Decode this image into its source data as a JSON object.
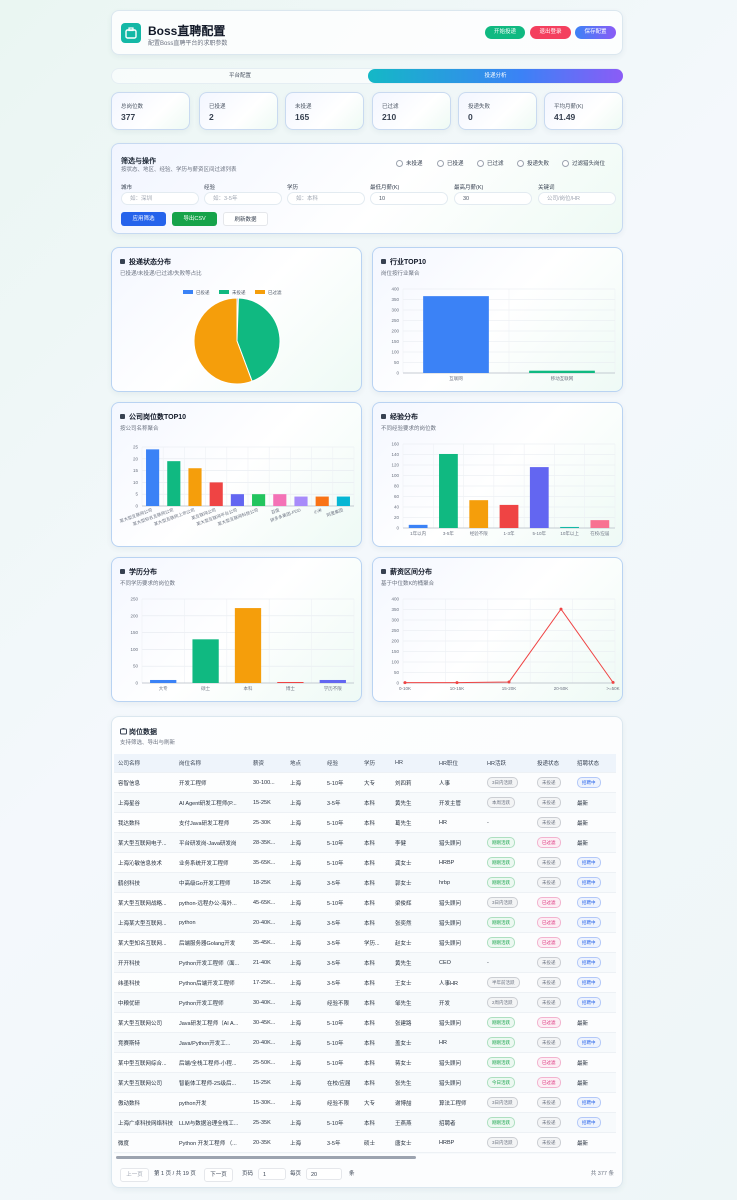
{
  "header": {
    "title": "Boss直聘配置",
    "subtitle": "配置Boss直聘平台的求职参数",
    "buttons": [
      "开始投递",
      "退出登录",
      "保存配置"
    ]
  },
  "tabs": [
    "平台配置",
    "投递分析"
  ],
  "stats": [
    {
      "label": "总岗位数",
      "value": 377
    },
    {
      "label": "已投递",
      "value": 2
    },
    {
      "label": "未投递",
      "value": 165
    },
    {
      "label": "已过滤",
      "value": 210
    },
    {
      "label": "投递失败",
      "value": 0
    },
    {
      "label": "平均月薪(K)",
      "value": 41.49
    }
  ],
  "filters": {
    "title": "筛选与操作",
    "subtitle": "按状态、地区、经验、学历与薪资区间过滤列表",
    "statuses": [
      "未投递",
      "已投递",
      "已过滤",
      "投递失败",
      "过滤猎头岗位"
    ],
    "fields": [
      {
        "label": "城市",
        "placeholder": "如：深圳"
      },
      {
        "label": "经验",
        "placeholder": "如：3-5年"
      },
      {
        "label": "学历",
        "placeholder": "如：本科"
      },
      {
        "label": "最低月薪(K)",
        "value": 10
      },
      {
        "label": "最高月薪(K)",
        "value": 30
      },
      {
        "label": "关键词",
        "placeholder": "公司/岗位/HR"
      }
    ],
    "buttons": [
      "应用筛选",
      "导出CSV",
      "刷新数据"
    ]
  },
  "chart_data": [
    {
      "type": "pie",
      "title": "投递状态分布",
      "subtitle": "已投递/未投递/已过滤/失败等占比",
      "categories": [
        "已投递",
        "未投递",
        "已过滤"
      ],
      "values": [
        2,
        165,
        210
      ],
      "colors": [
        "#3b82f6",
        "#10b981",
        "#f59e0b"
      ]
    },
    {
      "type": "bar",
      "title": "行业TOP10",
      "subtitle": "岗位按行业聚合",
      "categories": [
        "互联网",
        "移动互联网"
      ],
      "values": [
        366,
        11
      ],
      "colors": [
        "#3b82f6",
        "#10b981"
      ],
      "ylim": [
        0,
        400
      ],
      "yticks": [
        0,
        50,
        100,
        150,
        200,
        250,
        300,
        350,
        400
      ],
      "grid": true
    },
    {
      "type": "bar",
      "title": "公司岗位数TOP10",
      "subtitle": "按公司名称聚合",
      "categories": [
        "某大型互联网公司",
        "某大型知名互联网公司",
        "某大型互联网上市公司",
        "某互联网公司",
        "某大型互联网平台公司",
        "某大型互联网科技公司",
        "百度",
        "拼多多集团-PDD",
        "小米",
        "阿里集团"
      ],
      "values": [
        24,
        19,
        16,
        10,
        5,
        5,
        5,
        4,
        4,
        4
      ],
      "colors": [
        "#3b82f6",
        "#10b981",
        "#f59e0b",
        "#ef4444",
        "#6366f1",
        "#22c55e",
        "#f472b6",
        "#a78bfa",
        "#f97316",
        "#06b6d4"
      ],
      "ylim": [
        0,
        25
      ],
      "yticks": [
        0,
        5,
        10,
        15,
        20,
        25
      ],
      "grid": true
    },
    {
      "type": "bar",
      "title": "经验分布",
      "subtitle": "不同经验要求的岗位数",
      "categories": [
        "1年以内",
        "3-5年",
        "经验不限",
        "1-3年",
        "5-10年",
        "10年以上",
        "在校/应届"
      ],
      "values": [
        6,
        141,
        53,
        44,
        116,
        2,
        15
      ],
      "colors": [
        "#3b82f6",
        "#10b981",
        "#f59e0b",
        "#ef4444",
        "#6366f1",
        "#14b8a6",
        "#f87191"
      ],
      "ylim": [
        0,
        160
      ],
      "yticks": [
        0,
        20,
        40,
        60,
        80,
        100,
        120,
        140,
        160
      ],
      "grid": true
    },
    {
      "type": "bar",
      "title": "学历分布",
      "subtitle": "不同学历要求的岗位数",
      "categories": [
        "大专",
        "硕士",
        "本科",
        "博士",
        "学历不限"
      ],
      "values": [
        9,
        130,
        223,
        3,
        9
      ],
      "colors": [
        "#3b82f6",
        "#10b981",
        "#f59e0b",
        "#ef4444",
        "#6366f1"
      ],
      "ylim": [
        0,
        250
      ],
      "yticks": [
        0,
        50,
        100,
        150,
        200,
        250
      ],
      "grid": true
    },
    {
      "type": "line",
      "title": "薪资区间分布",
      "subtitle": "基于中位数K的桶聚合",
      "categories": [
        "0-10K",
        "10-15K",
        "15-20K",
        "20-50K",
        ">=50K"
      ],
      "values": [
        2,
        2,
        5,
        352,
        3
      ],
      "color": "#ef4444",
      "ylim": [
        0,
        400
      ],
      "yticks": [
        0,
        50,
        100,
        150,
        200,
        250,
        300,
        350,
        400
      ],
      "grid": true
    }
  ],
  "table": {
    "title": "岗位数据",
    "subtitle": "支持筛选、导出与刷新",
    "columns": [
      "公司名称",
      "岗位名称",
      "薪资",
      "地点",
      "经验",
      "学历",
      "HR",
      "HR职位",
      "HR活跃",
      "投递状态",
      "招聘状态"
    ],
    "badge_colors": {
      "刚刚活跃": "#16a34a",
      "今日活跃": "#16a34a",
      "本周活跃": "#6b7280",
      "3日内活跃": "#6b7280",
      "2周内活跃": "#6b7280",
      "半年前活跃": "#6b7280",
      "未投递": "#6b7280",
      "已过滤": "#db2777",
      "招聘中": "#2563eb"
    },
    "rows": [
      [
        "容智信息",
        "开发工程师",
        "30-100...",
        "上海",
        "5-10年",
        "大专",
        "刘四莉",
        "人事",
        "3日内活跃",
        "未投递",
        "招聘中"
      ],
      [
        "上海星谷",
        "AI Agent研发工程师(P...",
        "15-25K",
        "上海",
        "3-5年",
        "本科",
        "黄先生",
        "开发主管",
        "本周活跃",
        "未投递",
        "最新"
      ],
      [
        "我达数科",
        "支付Java研发工程师",
        "25-30K",
        "上海",
        "5-10年",
        "本科",
        "葛先生",
        "HR",
        "-",
        "未投递",
        "最新"
      ],
      [
        "某大型互联网电子...",
        "平台研发岗-Java研发岗",
        "28-35K...",
        "上海",
        "5-10年",
        "本科",
        "李健",
        "猎头顾问",
        "刚刚活跃",
        "已过滤",
        "最新"
      ],
      [
        "上海沁敏信息技术",
        "业务系统开发工程师",
        "35-65K...",
        "上海",
        "5-10年",
        "本科",
        "龚女士",
        "HRBP",
        "刚刚活跃",
        "未投递",
        "招聘中"
      ],
      [
        "鹤创科技",
        "中高级Go开发工程师",
        "18-25K",
        "上海",
        "3-5年",
        "本科",
        "郭女士",
        "hrbp",
        "刚刚活跃",
        "未投递",
        "招聘中"
      ],
      [
        "某大型互联网战略...",
        "python-远程办公-海外...",
        "45-65K...",
        "上海",
        "5-10年",
        "本科",
        "梁俊辉",
        "猎头顾问",
        "3日内活跃",
        "已过滤",
        "招聘中"
      ],
      [
        "上海某大型互联网...",
        "python",
        "20-40K...",
        "上海",
        "3-5年",
        "本科",
        "张奕然",
        "猎头顾问",
        "刚刚活跃",
        "已过滤",
        "招聘中"
      ],
      [
        "某大型知名互联网...",
        "后端服务器Golang开发",
        "35-45K...",
        "上海",
        "3-5年",
        "学历...",
        "赵女士",
        "猎头顾问",
        "刚刚活跃",
        "已过滤",
        "招聘中"
      ],
      [
        "开开科技",
        "Python开发工程师（面...",
        "21-40K",
        "上海",
        "3-5年",
        "本科",
        "黄先生",
        "CEO",
        "-",
        "未投递",
        "招聘中"
      ],
      [
        "纬墨科技",
        "Python后端开发工程师",
        "17-25K...",
        "上海",
        "3-5年",
        "本科",
        "王女士",
        "人事HR",
        "半年前活跃",
        "未投递",
        "招聘中"
      ],
      [
        "中粮优研",
        "Python开发工程师",
        "30-40K...",
        "上海",
        "经验不限",
        "本科",
        "邹先生",
        "开发",
        "2周内活跃",
        "未投递",
        "招聘中"
      ],
      [
        "某大型互联网公司",
        "Java研发工程师（AI A...",
        "30-45K...",
        "上海",
        "5-10年",
        "本科",
        "张建路",
        "猎头顾问",
        "刚刚活跃",
        "已过滤",
        "最新"
      ],
      [
        "竞赛斯特",
        "Java/Python开发工...",
        "20-40K...",
        "上海",
        "5-10年",
        "本科",
        "盖女士",
        "HR",
        "刚刚活跃",
        "未投递",
        "招聘中"
      ],
      [
        "某中型互联网综合...",
        "后端/全栈工程师-小程...",
        "25-50K...",
        "上海",
        "5-10年",
        "本科",
        "蒋女士",
        "猎头顾问",
        "刚刚活跃",
        "已过滤",
        "最新"
      ],
      [
        "某大型互联网公司",
        "智能体工程师-2S级后...",
        "15-25K",
        "上海",
        "在校/应届",
        "本科",
        "张先生",
        "猎头顾问",
        "今日活跃",
        "已过滤",
        "最新"
      ],
      [
        "傲动数科",
        "python开发",
        "15-30K...",
        "上海",
        "经验不限",
        "大专",
        "谢博喆",
        "算法工程师",
        "3日内活跃",
        "未投递",
        "招聘中"
      ],
      [
        "上海广卓科技网络科技",
        "LLM与数据治理全栈工...",
        "25-35K",
        "上海",
        "5-10年",
        "本科",
        "王燕燕",
        "招聘者",
        "刚刚活跃",
        "未投递",
        "招聘中"
      ],
      [
        "微度",
        "Python 开发工程师 （...",
        "20-35K",
        "上海",
        "3-5年",
        "硕士",
        "唐女士",
        "HRBP",
        "3日内活跃",
        "未投递",
        "最新"
      ],
      [
        "平安科技",
        "AI Agent平台开发工程师",
        "20-25K...",
        "上海",
        "3-5年",
        "本科",
        "刘女士",
        "人事HRBP",
        "今日活跃",
        "未投递",
        "最新"
      ]
    ]
  },
  "pagination": {
    "prev": "上一页",
    "page_info": "第 1 页 / 共 19 页",
    "next": "下一页",
    "page_label": "页码",
    "page": 1,
    "per_page_label": "每页",
    "per_page": 20,
    "unit": "条",
    "total": "共 377 条"
  }
}
